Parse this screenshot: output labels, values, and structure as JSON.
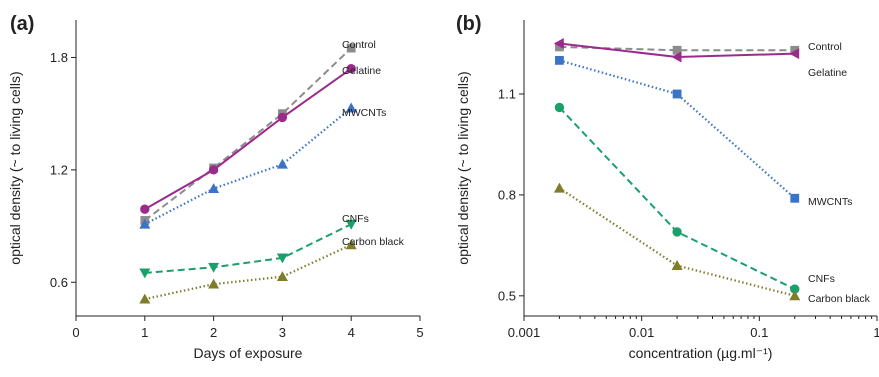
{
  "chart_data": [
    {
      "panel_label": "(a)",
      "type": "line",
      "xlabel": "Days of exposure",
      "ylabel": "optical density (~ to living cells)",
      "xlim": [
        0,
        5
      ],
      "ylim": [
        0.42,
        2.0
      ],
      "xticks": [
        0,
        1,
        2,
        3,
        4,
        5
      ],
      "yticks": [
        0.6,
        1.2,
        1.8
      ],
      "xtick_labels": [
        "0",
        "1",
        "2",
        "3",
        "4",
        "5"
      ],
      "ytick_labels": [
        "0.6",
        "1.2",
        "1.8"
      ],
      "grid": false,
      "series": [
        {
          "name": "Control",
          "x": [
            1,
            2,
            3,
            4
          ],
          "y": [
            0.93,
            1.21,
            1.5,
            1.85
          ],
          "color": "#8c8c8c",
          "marker": "square",
          "line_style": "dashed"
        },
        {
          "name": "Gelatine",
          "x": [
            1,
            2,
            3,
            4
          ],
          "y": [
            0.99,
            1.2,
            1.48,
            1.74
          ],
          "color": "#9b2a8c",
          "marker": "circle",
          "line_style": "solid"
        },
        {
          "name": "MWCNTs",
          "x": [
            1,
            2,
            3,
            4
          ],
          "y": [
            0.91,
            1.1,
            1.23,
            1.53
          ],
          "color": "#3a73c8",
          "marker": "triangle-up",
          "line_style": "dotted"
        },
        {
          "name": "CNFs",
          "x": [
            1,
            2,
            3,
            4
          ],
          "y": [
            0.65,
            0.68,
            0.73,
            0.91
          ],
          "color": "#1aa06a",
          "marker": "triangle-down",
          "line_style": "dashed"
        },
        {
          "name": "Carbon black",
          "x": [
            1,
            2,
            3,
            4
          ],
          "y": [
            0.51,
            0.59,
            0.63,
            0.8
          ],
          "color": "#7d7d2a",
          "marker": "triangle-up",
          "line_style": "dotted"
        }
      ]
    },
    {
      "panel_label": "(b)",
      "type": "line",
      "xlabel": "concentration (µg.ml⁻¹)",
      "ylabel": "optical density (~ to living cells)",
      "xscale": "log",
      "xlim": [
        0.001,
        1
      ],
      "ylim": [
        0.44,
        1.32
      ],
      "xticks": [
        0.001,
        0.01,
        0.1,
        1
      ],
      "yticks": [
        0.5,
        0.8,
        1.1
      ],
      "xtick_labels": [
        "0.001",
        "0.01",
        "0.1",
        "1"
      ],
      "ytick_labels": [
        "0.5",
        "0.8",
        "1.1"
      ],
      "grid": false,
      "series": [
        {
          "name": "Control",
          "x": [
            0.002,
            0.02,
            0.2
          ],
          "y": [
            1.24,
            1.23,
            1.23
          ],
          "color": "#8c8c8c",
          "marker": "square",
          "line_style": "dashed"
        },
        {
          "name": "Gelatine",
          "x": [
            0.002,
            0.02,
            0.2
          ],
          "y": [
            1.25,
            1.21,
            1.22
          ],
          "color": "#9b2a8c",
          "marker": "triangle-left",
          "line_style": "solid"
        },
        {
          "name": "MWCNTs",
          "x": [
            0.002,
            0.02,
            0.2
          ],
          "y": [
            1.2,
            1.1,
            0.79
          ],
          "color": "#3a73c8",
          "marker": "square",
          "line_style": "dotted"
        },
        {
          "name": "CNFs",
          "x": [
            0.002,
            0.02,
            0.2
          ],
          "y": [
            1.06,
            0.69,
            0.52
          ],
          "color": "#1aa06a",
          "marker": "circle",
          "line_style": "dashed"
        },
        {
          "name": "Carbon black",
          "x": [
            0.002,
            0.02,
            0.2
          ],
          "y": [
            0.82,
            0.59,
            0.5
          ],
          "color": "#7d7d2a",
          "marker": "triangle-up",
          "line_style": "dotted"
        }
      ]
    }
  ]
}
